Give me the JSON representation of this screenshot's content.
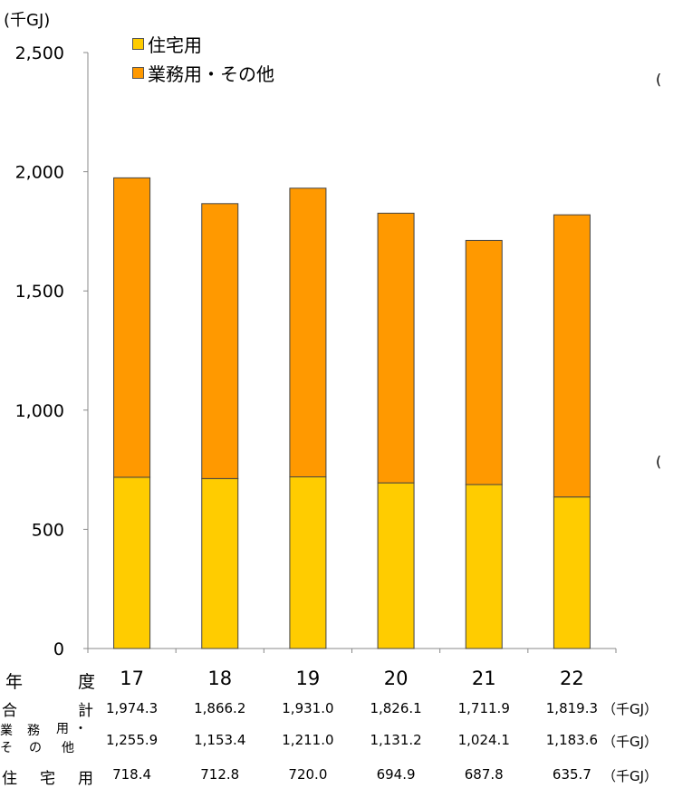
{
  "chart_data": {
    "type": "bar",
    "stacked": true,
    "unit_label": "(千GJ)",
    "categories": [
      "17",
      "18",
      "19",
      "20",
      "21",
      "22"
    ],
    "series": [
      {
        "name": "住宅用",
        "values": [
          718.4,
          712.8,
          720.0,
          694.9,
          687.8,
          635.7
        ],
        "color": "#FFCC00"
      },
      {
        "name": "業務用・その他",
        "values": [
          1255.9,
          1153.4,
          1211.0,
          1131.2,
          1024.1,
          1183.6
        ],
        "color": "#FF9900"
      }
    ],
    "ylim": [
      0,
      2500
    ],
    "yticks": [
      "0",
      "500",
      "1,000",
      "1,500",
      "2,000",
      "2,500"
    ],
    "grid": false,
    "legend_position": "top-left"
  },
  "table": {
    "year_header": [
      "年",
      "度"
    ],
    "total_header": [
      "合",
      "計"
    ],
    "business_header": [
      "業",
      "務",
      "用",
      "・",
      "そ",
      "の",
      "他"
    ],
    "residential_header": [
      "住",
      "宅",
      "用"
    ],
    "totals": [
      "1,974.3",
      "1,866.2",
      "1,931.0",
      "1,826.1",
      "1,711.9",
      "1,819.3"
    ],
    "business": [
      "1,255.9",
      "1,153.4",
      "1,211.0",
      "1,131.2",
      "1,024.1",
      "1,183.6"
    ],
    "residential": [
      "718.4",
      "712.8",
      "720.0",
      "694.9",
      "687.8",
      "635.7"
    ],
    "unit": "（千GJ）"
  },
  "side_marks": [
    "(",
    "("
  ]
}
